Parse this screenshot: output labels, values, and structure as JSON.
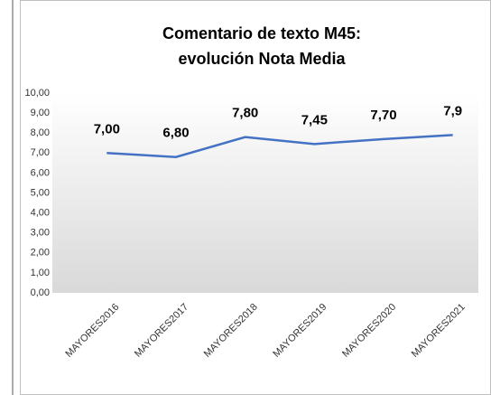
{
  "chart_data": {
    "type": "line",
    "title": [
      "Comentario de texto M45:",
      "evolución Nota Media"
    ],
    "categories": [
      "MAYORES2016",
      "MAYORES2017",
      "MAYORES2018",
      "MAYORES2019",
      "MAYORES2020",
      "MAYORES2021"
    ],
    "series": [
      {
        "name": "Nota Media",
        "color": "#4472c4",
        "values": [
          7.0,
          6.8,
          7.8,
          7.45,
          7.7,
          7.9
        ],
        "value_labels": [
          "7,00",
          "6,80",
          "7,80",
          "7,45",
          "7,70",
          "7,9"
        ]
      }
    ],
    "ylim": [
      0,
      10
    ],
    "yticks": [
      {
        "value": 0,
        "label": "0,00"
      },
      {
        "value": 1,
        "label": "1,00"
      },
      {
        "value": 2,
        "label": "2,00"
      },
      {
        "value": 3,
        "label": "3,00"
      },
      {
        "value": 4,
        "label": "4,00"
      },
      {
        "value": 5,
        "label": "5,00"
      },
      {
        "value": 6,
        "label": "6,00"
      },
      {
        "value": 7,
        "label": "7,00"
      },
      {
        "value": 8,
        "label": "8,00"
      },
      {
        "value": 9,
        "label": "9,00"
      },
      {
        "value": 10,
        "label": "10,00"
      }
    ],
    "grid": false
  }
}
